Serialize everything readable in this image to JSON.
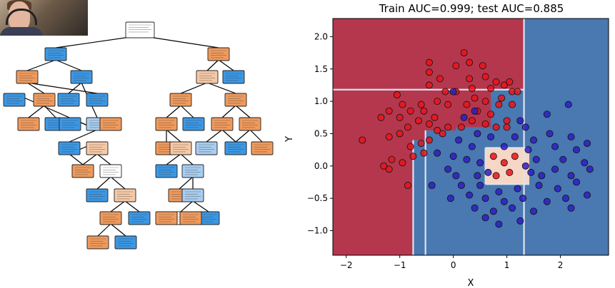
{
  "colors": {
    "region_red": "#b5374e",
    "region_blue": "#4a78b0",
    "region_light": "#f6d6c4",
    "boundary_line": "#dde3ee",
    "point_red": "#e8141c",
    "point_blue": "#2b1fc4",
    "node_orange": "#ef9a5d",
    "node_light_orange": "#f6c9a6",
    "node_blue": "#3c97e3",
    "node_light_blue": "#a8cdf0",
    "node_white": "#ffffff"
  },
  "webcam": {
    "icon": "webcam-presenter-thumbnail"
  },
  "chart_data": [
    {
      "type": "decision-tree-diagram",
      "nodes": [
        {
          "id": "n0",
          "color": "white"
        },
        {
          "id": "n1",
          "color": "blue"
        },
        {
          "id": "n2",
          "color": "orange"
        },
        {
          "id": "n3",
          "color": "orange"
        },
        {
          "id": "n4",
          "color": "blue"
        },
        {
          "id": "n5",
          "color": "orange"
        },
        {
          "id": "n6",
          "color": "blue"
        },
        {
          "id": "n7",
          "color": "orange"
        },
        {
          "id": "n8",
          "color": "blue"
        },
        {
          "id": "n9",
          "color": "blue"
        },
        {
          "id": "n10",
          "color": "light_blue"
        },
        {
          "id": "n11",
          "color": "blue"
        },
        {
          "id": "n12",
          "color": "orange"
        },
        {
          "id": "n13",
          "color": "blue"
        },
        {
          "id": "n14",
          "color": "blue"
        },
        {
          "id": "n15",
          "color": "blue"
        },
        {
          "id": "n16",
          "color": "light_orange"
        },
        {
          "id": "n17",
          "color": "orange"
        },
        {
          "id": "n18",
          "color": "white"
        },
        {
          "id": "n19",
          "color": "blue"
        },
        {
          "id": "n20",
          "color": "light_orange"
        },
        {
          "id": "n21",
          "color": "orange"
        },
        {
          "id": "n22",
          "color": "blue"
        },
        {
          "id": "n23",
          "color": "orange"
        },
        {
          "id": "n24",
          "color": "blue"
        },
        {
          "id": "n25",
          "color": "light_orange"
        },
        {
          "id": "n26",
          "color": "orange"
        },
        {
          "id": "n27",
          "color": "orange"
        },
        {
          "id": "n28",
          "color": "blue"
        },
        {
          "id": "n29",
          "color": "orange"
        },
        {
          "id": "n30",
          "color": "light_orange"
        },
        {
          "id": "n31",
          "color": "orange"
        },
        {
          "id": "n32",
          "color": "orange"
        },
        {
          "id": "n33",
          "color": "light_blue"
        },
        {
          "id": "n34",
          "color": "orange"
        },
        {
          "id": "n35",
          "color": "blue"
        },
        {
          "id": "n36",
          "color": "blue"
        },
        {
          "id": "n37",
          "color": "orange"
        },
        {
          "id": "n38",
          "color": "orange"
        },
        {
          "id": "n39",
          "color": "blue"
        },
        {
          "id": "n40",
          "color": "light_blue"
        },
        {
          "id": "n41",
          "color": "orange"
        },
        {
          "id": "n42",
          "color": "light_blue"
        },
        {
          "id": "n43",
          "color": "white"
        },
        {
          "id": "n44",
          "color": "blue"
        },
        {
          "id": "n45",
          "color": "orange"
        },
        {
          "id": "n46",
          "color": "orange"
        }
      ],
      "edges": [
        [
          "n0",
          "n1"
        ],
        [
          "n0",
          "n2"
        ],
        [
          "n1",
          "n3"
        ],
        [
          "n1",
          "n4"
        ],
        [
          "n3",
          "n5"
        ],
        [
          "n3",
          "n6"
        ],
        [
          "n5",
          "n7"
        ],
        [
          "n5",
          "n8"
        ],
        [
          "n4",
          "n9"
        ],
        [
          "n4",
          "n10"
        ],
        [
          "n10",
          "n11"
        ],
        [
          "n10",
          "n12"
        ],
        [
          "n10",
          "n13"
        ],
        [
          "n10",
          "n14"
        ],
        [
          "n11",
          "n15"
        ],
        [
          "n11",
          "n16"
        ],
        [
          "n16",
          "n17"
        ],
        [
          "n16",
          "n18"
        ],
        [
          "n18",
          "n19"
        ],
        [
          "n18",
          "n20"
        ],
        [
          "n20",
          "n21"
        ],
        [
          "n20",
          "n22"
        ],
        [
          "n21",
          "n23"
        ],
        [
          "n21",
          "n24"
        ],
        [
          "n2",
          "n25"
        ],
        [
          "n2",
          "n36"
        ],
        [
          "n25",
          "n26"
        ],
        [
          "n25",
          "n37"
        ],
        [
          "n26",
          "n27"
        ],
        [
          "n26",
          "n28"
        ],
        [
          "n27",
          "n29"
        ],
        [
          "n27",
          "n30"
        ],
        [
          "n37",
          "n31"
        ],
        [
          "n37",
          "n32"
        ],
        [
          "n31",
          "n33"
        ],
        [
          "n31",
          "n34"
        ],
        [
          "n32",
          "n35"
        ],
        [
          "n32",
          "n38"
        ],
        [
          "n30",
          "n39"
        ],
        [
          "n30",
          "n40"
        ],
        [
          "n40",
          "n41"
        ],
        [
          "n40",
          "n42"
        ],
        [
          "n42",
          "n43"
        ],
        [
          "n42",
          "n44"
        ],
        [
          "n43",
          "n45"
        ],
        [
          "n43",
          "n46"
        ]
      ]
    },
    {
      "type": "scatter",
      "title": "Train AUC=0.999; test AUC=0.885",
      "xlabel": "X",
      "ylabel": "Y",
      "xlim": [
        -2.25,
        2.9
      ],
      "ylim": [
        -1.38,
        2.28
      ],
      "xticks": [
        -2,
        -1,
        0,
        1,
        2
      ],
      "xtick_labels": [
        "−2",
        "−1",
        "0",
        "1",
        "2"
      ],
      "yticks": [
        -1.0,
        -0.5,
        0.0,
        0.5,
        1.0,
        1.5,
        2.0
      ],
      "ytick_labels": [
        "−1.0",
        "−0.5",
        "0.0",
        "0.5",
        "1.0",
        "1.5",
        "2.0"
      ],
      "background_regions": [
        {
          "class": "red",
          "x0": -2.25,
          "x1": 2.9,
          "y0": -1.38,
          "y1": 2.28
        },
        {
          "class": "blue",
          "x0": 1.32,
          "x1": 2.9,
          "y0": -1.38,
          "y1": 2.28
        },
        {
          "class": "blue",
          "x0": -0.52,
          "x1": 1.32,
          "y0": -1.38,
          "y1": 0.55
        },
        {
          "class": "blue",
          "x0": -0.75,
          "x1": -0.52,
          "y0": -1.38,
          "y1": 0.4
        },
        {
          "class": "blue",
          "x0": 0.7,
          "x1": 1.32,
          "y0": 0.55,
          "y1": 1.18
        },
        {
          "class": "blue",
          "x0": 0.05,
          "x1": 0.7,
          "y0": 0.55,
          "y1": 0.6
        },
        {
          "class": "light",
          "x0": 0.6,
          "x1": 1.42,
          "y0": -0.28,
          "y1": 0.28
        }
      ],
      "boundary_lines": [
        {
          "x0": -2.25,
          "y0": 1.18,
          "x1": 1.32,
          "y1": 1.18
        },
        {
          "x0": -0.75,
          "y0": 0.4,
          "x1": -0.75,
          "y1": -1.38
        },
        {
          "x0": -0.52,
          "y0": 0.55,
          "x1": -0.52,
          "y1": -1.38
        },
        {
          "x0": 1.32,
          "y0": 2.28,
          "x1": 1.32,
          "y1": -1.38
        },
        {
          "x0": 0.6,
          "y0": 0.28,
          "x1": 1.42,
          "y1": 0.28
        },
        {
          "x0": 0.6,
          "y0": -0.28,
          "x1": 1.42,
          "y1": -0.28
        },
        {
          "x0": 0.6,
          "y0": -0.28,
          "x1": 0.6,
          "y1": 0.28
        }
      ],
      "series": [
        {
          "class": "red",
          "points": [
            [
              0.2,
              1.75
            ],
            [
              -0.45,
              1.6
            ],
            [
              -0.45,
              1.45
            ],
            [
              0.3,
              1.6
            ],
            [
              0.05,
              1.55
            ],
            [
              0.55,
              1.55
            ],
            [
              -0.25,
              1.35
            ],
            [
              0.3,
              1.35
            ],
            [
              0.6,
              1.38
            ],
            [
              0.8,
              1.3
            ],
            [
              0.95,
              1.25
            ],
            [
              1.05,
              1.3
            ],
            [
              -0.45,
              1.25
            ],
            [
              -0.15,
              1.15
            ],
            [
              0.05,
              1.15
            ],
            [
              0.35,
              1.2
            ],
            [
              0.7,
              1.2
            ],
            [
              1.1,
              1.15
            ],
            [
              0.4,
              1.05
            ],
            [
              0.6,
              1.0
            ],
            [
              0.85,
              0.95
            ],
            [
              1.2,
              1.15
            ],
            [
              -1.2,
              0.85
            ],
            [
              -1.35,
              0.75
            ],
            [
              -1.0,
              0.75
            ],
            [
              -0.8,
              0.85
            ],
            [
              -0.6,
              0.95
            ],
            [
              -0.3,
              1.0
            ],
            [
              -0.1,
              0.95
            ],
            [
              0.25,
              0.95
            ],
            [
              0.45,
              0.85
            ],
            [
              0.7,
              0.8
            ],
            [
              1.0,
              0.7
            ],
            [
              -1.7,
              0.4
            ],
            [
              -1.2,
              0.45
            ],
            [
              -1.0,
              0.5
            ],
            [
              -0.85,
              0.6
            ],
            [
              -0.65,
              0.7
            ],
            [
              -0.45,
              0.65
            ],
            [
              -0.3,
              0.55
            ],
            [
              -0.1,
              0.6
            ],
            [
              0.15,
              0.6
            ],
            [
              0.35,
              0.7
            ],
            [
              0.6,
              0.65
            ],
            [
              0.8,
              0.6
            ],
            [
              1.0,
              0.6
            ],
            [
              -0.8,
              0.3
            ],
            [
              -0.6,
              0.35
            ],
            [
              -0.45,
              0.4
            ],
            [
              -0.2,
              0.5
            ],
            [
              -1.15,
              0.1
            ],
            [
              -1.3,
              0.0
            ],
            [
              -0.95,
              0.05
            ],
            [
              -0.75,
              0.15
            ],
            [
              -0.55,
              0.2
            ],
            [
              -0.85,
              -0.3
            ],
            [
              -1.2,
              -0.05
            ],
            [
              -0.95,
              0.95
            ],
            [
              -1.05,
              1.1
            ],
            [
              -0.55,
              0.85
            ],
            [
              -0.35,
              0.75
            ],
            [
              0.9,
              1.05
            ],
            [
              1.1,
              0.95
            ],
            [
              0.75,
              0.15
            ],
            [
              0.95,
              0.05
            ],
            [
              1.05,
              -0.1
            ],
            [
              0.8,
              -0.15
            ],
            [
              1.15,
              0.15
            ]
          ]
        },
        {
          "class": "blue",
          "points": [
            [
              0.0,
              1.15
            ],
            [
              1.25,
              0.7
            ],
            [
              1.75,
              0.8
            ],
            [
              2.15,
              0.95
            ],
            [
              1.35,
              0.6
            ],
            [
              0.45,
              0.5
            ],
            [
              0.7,
              0.45
            ],
            [
              1.15,
              0.45
            ],
            [
              1.8,
              0.5
            ],
            [
              2.2,
              0.45
            ],
            [
              2.5,
              0.35
            ],
            [
              0.1,
              0.4
            ],
            [
              0.35,
              0.3
            ],
            [
              0.95,
              0.3
            ],
            [
              1.4,
              0.25
            ],
            [
              1.9,
              0.3
            ],
            [
              2.3,
              0.25
            ],
            [
              -0.3,
              0.2
            ],
            [
              0.0,
              0.15
            ],
            [
              0.25,
              0.1
            ],
            [
              0.5,
              0.05
            ],
            [
              1.55,
              0.1
            ],
            [
              2.05,
              0.1
            ],
            [
              2.45,
              0.05
            ],
            [
              -0.1,
              -0.05
            ],
            [
              0.45,
              -0.15
            ],
            [
              1.45,
              -0.1
            ],
            [
              1.9,
              -0.05
            ],
            [
              2.2,
              -0.15
            ],
            [
              2.55,
              -0.05
            ],
            [
              -0.4,
              -0.3
            ],
            [
              0.15,
              -0.3
            ],
            [
              0.5,
              -0.3
            ],
            [
              0.85,
              -0.4
            ],
            [
              1.2,
              -0.35
            ],
            [
              1.6,
              -0.3
            ],
            [
              1.95,
              -0.35
            ],
            [
              2.3,
              -0.25
            ],
            [
              -0.05,
              -0.5
            ],
            [
              0.3,
              -0.45
            ],
            [
              0.6,
              -0.5
            ],
            [
              0.95,
              -0.55
            ],
            [
              1.3,
              -0.5
            ],
            [
              1.75,
              -0.55
            ],
            [
              2.1,
              -0.5
            ],
            [
              2.5,
              -0.45
            ],
            [
              0.4,
              -0.65
            ],
            [
              0.75,
              -0.7
            ],
            [
              1.1,
              -0.65
            ],
            [
              1.5,
              -0.7
            ],
            [
              2.2,
              -0.65
            ],
            [
              0.6,
              -0.8
            ],
            [
              0.85,
              -0.9
            ],
            [
              1.25,
              -0.85
            ],
            [
              0.2,
              0.75
            ],
            [
              0.4,
              0.85
            ],
            [
              1.5,
              0.4
            ],
            [
              0.65,
              -0.1
            ],
            [
              1.35,
              0.0
            ],
            [
              1.65,
              -0.15
            ],
            [
              0.05,
              -0.15
            ]
          ]
        }
      ]
    }
  ]
}
